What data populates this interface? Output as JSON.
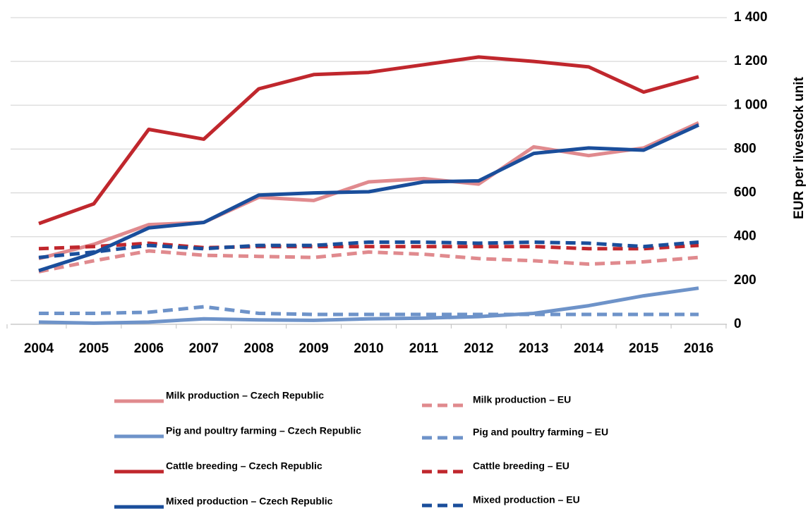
{
  "chart_data": {
    "type": "line",
    "y_axis_label": "EUR per livestock unit",
    "categories": [
      "2004",
      "2005",
      "2006",
      "2007",
      "2008",
      "2009",
      "2010",
      "2011",
      "2012",
      "2013",
      "2014",
      "2015",
      "2016"
    ],
    "ylim": [
      0,
      1400
    ],
    "yticks": [
      0,
      200,
      400,
      600,
      800,
      {
        "value": 1000,
        "label": "1 000"
      },
      {
        "value": 1200,
        "label": "1 200"
      },
      {
        "value": 1400,
        "label": "1 400"
      }
    ],
    "grid": true,
    "series": [
      {
        "name": "Milk production – Czech Republic",
        "color": "#e08a8e",
        "dashed": false,
        "values": [
          300,
          365,
          455,
          465,
          580,
          565,
          650,
          665,
          640,
          810,
          770,
          805,
          920
        ]
      },
      {
        "name": "Milk production – EU",
        "color": "#e08a8e",
        "dashed": true,
        "values": [
          240,
          290,
          335,
          315,
          310,
          305,
          330,
          320,
          300,
          290,
          275,
          285,
          305
        ]
      },
      {
        "name": "Pig and poultry farming – Czech Republic",
        "color": "#6e93c9",
        "dashed": false,
        "values": [
          10,
          5,
          10,
          25,
          20,
          18,
          25,
          28,
          35,
          50,
          85,
          130,
          165
        ]
      },
      {
        "name": "Pig and poultry farming – EU",
        "color": "#6e93c9",
        "dashed": true,
        "values": [
          50,
          50,
          55,
          80,
          50,
          45,
          45,
          45,
          45,
          45,
          45,
          45,
          45
        ]
      },
      {
        "name": "Cattle breeding – Czech Republic",
        "color": "#c0272d",
        "dashed": false,
        "values": [
          460,
          550,
          890,
          845,
          1075,
          1140,
          1150,
          1185,
          1220,
          1200,
          1175,
          1060,
          1130
        ]
      },
      {
        "name": "Cattle breeding – EU",
        "color": "#c0272d",
        "dashed": true,
        "values": [
          345,
          355,
          370,
          350,
          355,
          355,
          355,
          355,
          355,
          355,
          345,
          345,
          360
        ]
      },
      {
        "name": "Mixed production – Czech Republic",
        "color": "#1a4e9b",
        "dashed": false,
        "values": [
          245,
          325,
          440,
          465,
          590,
          600,
          605,
          650,
          655,
          780,
          805,
          795,
          910
        ]
      },
      {
        "name": "Mixed production – EU",
        "color": "#1a4e9b",
        "dashed": true,
        "values": [
          305,
          330,
          360,
          345,
          360,
          360,
          375,
          375,
          370,
          375,
          370,
          355,
          375
        ]
      }
    ]
  }
}
